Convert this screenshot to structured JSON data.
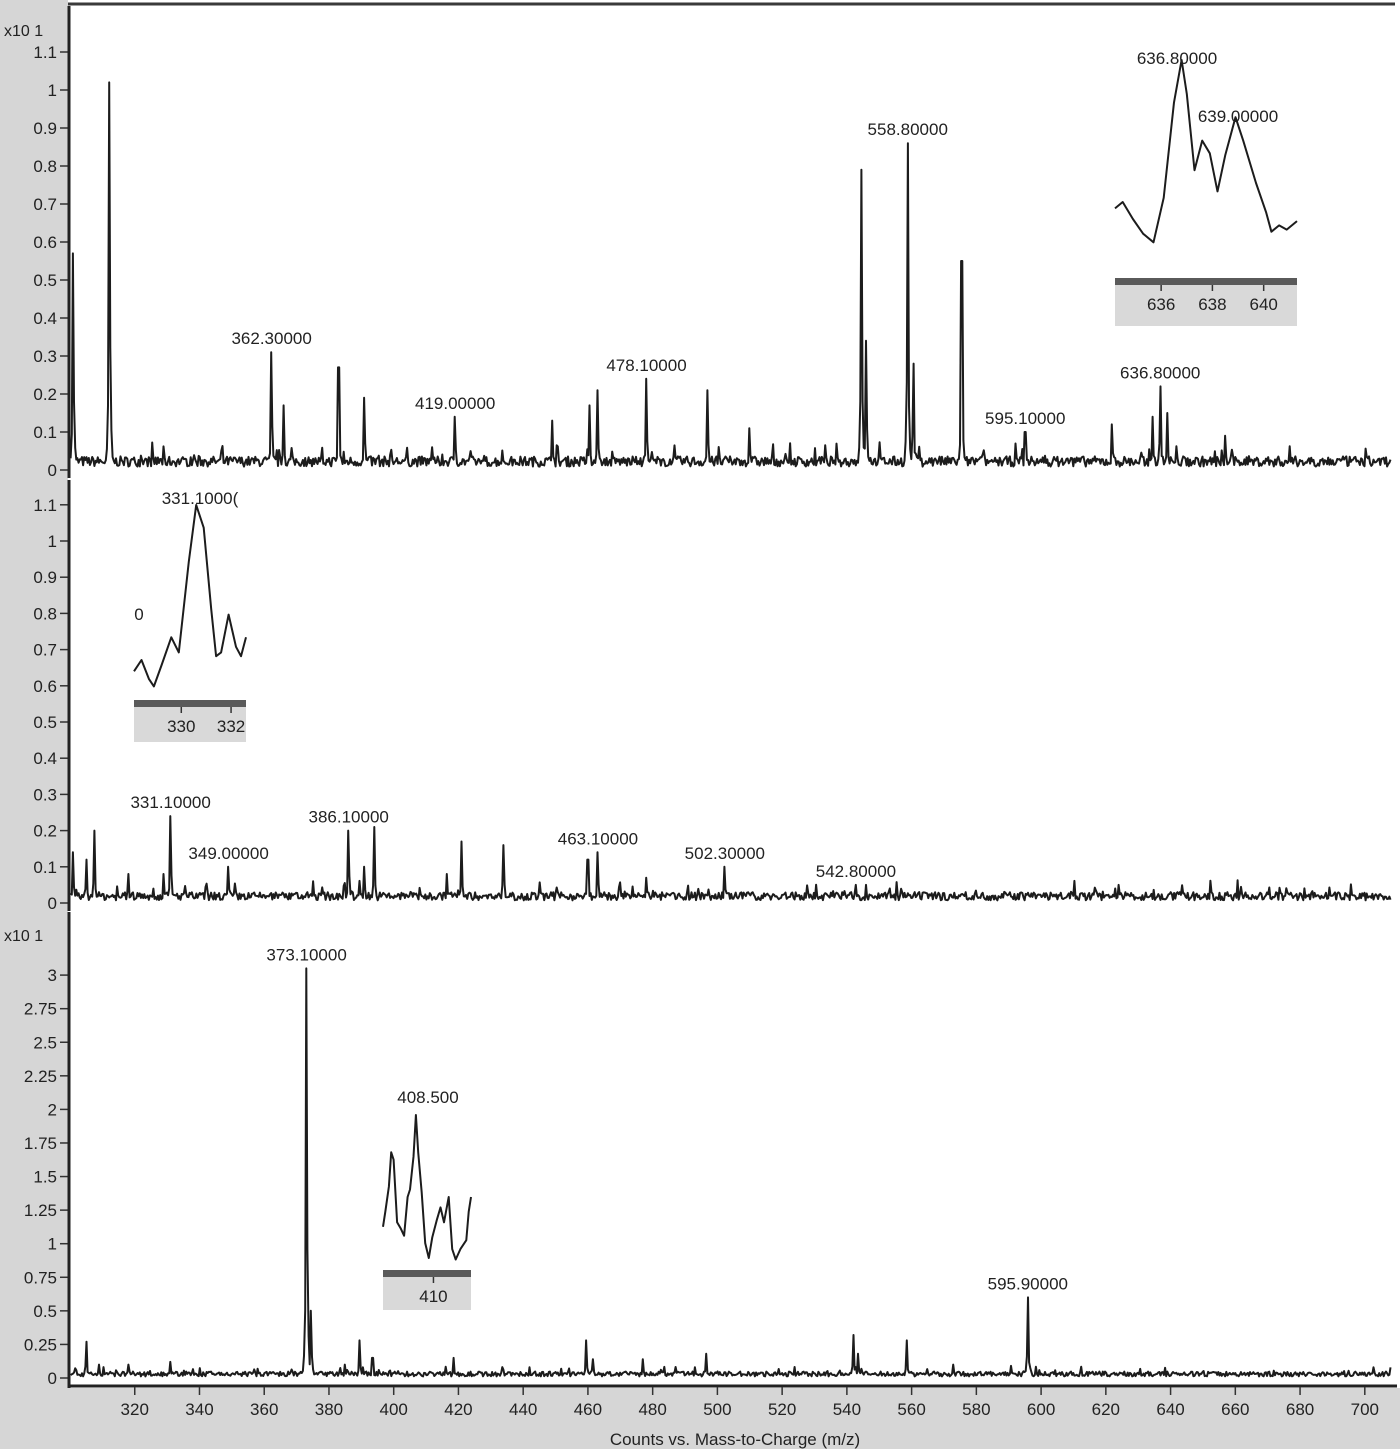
{
  "colors": {
    "axis_strip": "#d6d6d6",
    "trace": "#1c1c1c",
    "frame": "#3a3a3a",
    "inset_bar": "#5a5a5a",
    "inset_label_bg": "#d9d9d9",
    "plot_bg": "#ffffff"
  },
  "chart_data": [
    {
      "type": "line",
      "panel": "top",
      "title": "",
      "exponent_label": "x10 1",
      "xlabel": "",
      "ylabel": "",
      "xlim": [
        300,
        708
      ],
      "ylim": [
        0,
        1.12
      ],
      "y_ticks": [
        "0",
        "0.1",
        "0.2",
        "0.3",
        "0.4",
        "0.5",
        "0.6",
        "0.7",
        "0.8",
        "0.9",
        "1",
        "1.1"
      ],
      "y_tick_values": [
        0,
        0.1,
        0.2,
        0.3,
        0.4,
        0.5,
        0.6,
        0.7,
        0.8,
        0.9,
        1.0,
        1.1
      ],
      "peaks": [
        {
          "mz": 301.0,
          "intensity": 0.57
        },
        {
          "mz": 312.2,
          "intensity": 1.02
        },
        {
          "mz": 362.3,
          "intensity": 0.31,
          "label": "362.30000"
        },
        {
          "mz": 366.0,
          "intensity": 0.17
        },
        {
          "mz": 383.0,
          "intensity": 0.27
        },
        {
          "mz": 391.0,
          "intensity": 0.19
        },
        {
          "mz": 419.0,
          "intensity": 0.14,
          "label": "419.00000"
        },
        {
          "mz": 449.0,
          "intensity": 0.13
        },
        {
          "mz": 460.5,
          "intensity": 0.17
        },
        {
          "mz": 463.0,
          "intensity": 0.21
        },
        {
          "mz": 478.1,
          "intensity": 0.24,
          "label": "478.10000"
        },
        {
          "mz": 497.0,
          "intensity": 0.21
        },
        {
          "mz": 510.0,
          "intensity": 0.11
        },
        {
          "mz": 544.5,
          "intensity": 0.79
        },
        {
          "mz": 546.0,
          "intensity": 0.34
        },
        {
          "mz": 558.8,
          "intensity": 0.86,
          "label": "558.80000"
        },
        {
          "mz": 560.5,
          "intensity": 0.28
        },
        {
          "mz": 575.5,
          "intensity": 0.55
        },
        {
          "mz": 595.1,
          "intensity": 0.1,
          "label": "595.10000"
        },
        {
          "mz": 622.0,
          "intensity": 0.12
        },
        {
          "mz": 634.5,
          "intensity": 0.14
        },
        {
          "mz": 636.8,
          "intensity": 0.22,
          "label": "636.80000"
        },
        {
          "mz": 639.0,
          "intensity": 0.15
        },
        {
          "mz": 657.0,
          "intensity": 0.09
        }
      ],
      "noise_level": 0.03,
      "inset": {
        "x_ticks": [
          "636",
          "638",
          "640"
        ],
        "x_tick_values": [
          636,
          638,
          640
        ],
        "xlim": [
          634.2,
          641.3
        ],
        "labels": [
          "636.80000",
          "639.00000"
        ],
        "profile": [
          [
            634.2,
            0.3
          ],
          [
            634.5,
            0.33
          ],
          [
            634.9,
            0.25
          ],
          [
            635.3,
            0.18
          ],
          [
            635.7,
            0.14
          ],
          [
            636.1,
            0.35
          ],
          [
            636.5,
            0.8
          ],
          [
            636.8,
            1.0
          ],
          [
            637.0,
            0.84
          ],
          [
            637.3,
            0.48
          ],
          [
            637.6,
            0.62
          ],
          [
            637.9,
            0.56
          ],
          [
            638.2,
            0.38
          ],
          [
            638.5,
            0.55
          ],
          [
            638.9,
            0.73
          ],
          [
            639.2,
            0.62
          ],
          [
            639.7,
            0.42
          ],
          [
            640.1,
            0.28
          ],
          [
            640.3,
            0.19
          ],
          [
            640.6,
            0.22
          ],
          [
            640.9,
            0.2
          ],
          [
            641.3,
            0.24
          ]
        ]
      }
    },
    {
      "type": "line",
      "panel": "middle",
      "title": "",
      "exponent_label": "",
      "xlabel": "",
      "ylabel": "",
      "xlim": [
        300,
        708
      ],
      "ylim": [
        0,
        1.12
      ],
      "y_ticks": [
        "0",
        "0.1",
        "0.2",
        "0.3",
        "0.4",
        "0.5",
        "0.6",
        "0.7",
        "0.8",
        "0.9",
        "1",
        "1.1"
      ],
      "y_tick_values": [
        0,
        0.1,
        0.2,
        0.3,
        0.4,
        0.5,
        0.6,
        0.7,
        0.8,
        0.9,
        1.0,
        1.1
      ],
      "peaks": [
        {
          "mz": 301.0,
          "intensity": 0.14
        },
        {
          "mz": 305.0,
          "intensity": 0.12
        },
        {
          "mz": 307.5,
          "intensity": 0.2
        },
        {
          "mz": 318.0,
          "intensity": 0.08
        },
        {
          "mz": 329.0,
          "intensity": 0.08
        },
        {
          "mz": 331.1,
          "intensity": 0.24,
          "label": "331.10000"
        },
        {
          "mz": 349.0,
          "intensity": 0.1,
          "label": "349.00000"
        },
        {
          "mz": 375.0,
          "intensity": 0.06
        },
        {
          "mz": 386.1,
          "intensity": 0.2,
          "label": "386.10000"
        },
        {
          "mz": 391.0,
          "intensity": 0.1
        },
        {
          "mz": 394.0,
          "intensity": 0.21
        },
        {
          "mz": 416.5,
          "intensity": 0.08
        },
        {
          "mz": 421.0,
          "intensity": 0.17
        },
        {
          "mz": 434.0,
          "intensity": 0.16
        },
        {
          "mz": 460.0,
          "intensity": 0.12
        },
        {
          "mz": 463.1,
          "intensity": 0.14,
          "label": "463.10000"
        },
        {
          "mz": 478.0,
          "intensity": 0.07
        },
        {
          "mz": 502.3,
          "intensity": 0.1,
          "label": "502.30000"
        },
        {
          "mz": 542.8,
          "intensity": 0.05,
          "label": "542.80000"
        },
        {
          "mz": 546.0,
          "intensity": 0.05
        },
        {
          "mz": 623.0,
          "intensity": 0.04
        }
      ],
      "noise_level": 0.025,
      "inset": {
        "x_ticks": [
          "330",
          "332"
        ],
        "x_tick_values": [
          330,
          332
        ],
        "xlim": [
          328.1,
          332.6
        ],
        "labels": [
          "331.1000(",
          "0"
        ],
        "profile": [
          [
            328.1,
            0.12
          ],
          [
            328.4,
            0.18
          ],
          [
            328.7,
            0.08
          ],
          [
            328.9,
            0.04
          ],
          [
            329.2,
            0.15
          ],
          [
            329.6,
            0.3
          ],
          [
            329.9,
            0.22
          ],
          [
            330.3,
            0.7
          ],
          [
            330.6,
            1.0
          ],
          [
            330.9,
            0.88
          ],
          [
            331.2,
            0.45
          ],
          [
            331.4,
            0.2
          ],
          [
            331.6,
            0.22
          ],
          [
            331.9,
            0.42
          ],
          [
            332.2,
            0.25
          ],
          [
            332.4,
            0.2
          ],
          [
            332.6,
            0.3
          ]
        ]
      }
    },
    {
      "type": "line",
      "panel": "bottom",
      "title": "",
      "exponent_label": "x10 1",
      "xlabel": "Counts vs. Mass-to-Charge (m/z)",
      "ylabel": "",
      "xlim": [
        300,
        708
      ],
      "ylim": [
        0,
        3.02
      ],
      "x_ticks": [
        "320",
        "340",
        "360",
        "380",
        "400",
        "420",
        "440",
        "460",
        "480",
        "500",
        "520",
        "540",
        "560",
        "580",
        "600",
        "620",
        "640",
        "660",
        "680",
        "700"
      ],
      "x_tick_values": [
        320,
        340,
        360,
        380,
        400,
        420,
        440,
        460,
        480,
        500,
        520,
        540,
        560,
        580,
        600,
        620,
        640,
        660,
        680,
        700
      ],
      "y_ticks": [
        "0",
        "0.25",
        "0.5",
        "0.75",
        "1",
        "1.25",
        "1.5",
        "1.75",
        "2",
        "2.25",
        "2.5",
        "2.75",
        "3"
      ],
      "y_tick_values": [
        0,
        0.25,
        0.5,
        0.75,
        1.0,
        1.25,
        1.5,
        1.75,
        2.0,
        2.25,
        2.5,
        2.75,
        3.0
      ],
      "peaks": [
        {
          "mz": 305.0,
          "intensity": 0.27
        },
        {
          "mz": 309.0,
          "intensity": 0.1
        },
        {
          "mz": 318.0,
          "intensity": 0.1
        },
        {
          "mz": 331.0,
          "intensity": 0.12
        },
        {
          "mz": 373.1,
          "intensity": 3.05,
          "label": "373.10000"
        },
        {
          "mz": 374.5,
          "intensity": 0.5
        },
        {
          "mz": 385.0,
          "intensity": 0.1
        },
        {
          "mz": 389.5,
          "intensity": 0.28
        },
        {
          "mz": 393.5,
          "intensity": 0.15
        },
        {
          "mz": 418.5,
          "intensity": 0.15
        },
        {
          "mz": 442.0,
          "intensity": 0.08
        },
        {
          "mz": 459.5,
          "intensity": 0.28
        },
        {
          "mz": 461.5,
          "intensity": 0.14
        },
        {
          "mz": 477.0,
          "intensity": 0.14
        },
        {
          "mz": 496.5,
          "intensity": 0.18
        },
        {
          "mz": 542.0,
          "intensity": 0.32
        },
        {
          "mz": 543.5,
          "intensity": 0.18
        },
        {
          "mz": 558.5,
          "intensity": 0.28
        },
        {
          "mz": 573.0,
          "intensity": 0.1
        },
        {
          "mz": 595.9,
          "intensity": 0.6,
          "label": "595.90000"
        }
      ],
      "noise_level": 0.04,
      "inset": {
        "x_ticks": [
          "410"
        ],
        "x_tick_values": [
          410
        ],
        "xlim": [
          405.7,
          413.2
        ],
        "labels": [
          "408.500"
        ],
        "profile": [
          [
            405.7,
            0.25
          ],
          [
            405.9,
            0.35
          ],
          [
            406.2,
            0.52
          ],
          [
            406.4,
            0.75
          ],
          [
            406.6,
            0.7
          ],
          [
            406.9,
            0.28
          ],
          [
            407.2,
            0.24
          ],
          [
            407.5,
            0.19
          ],
          [
            407.8,
            0.45
          ],
          [
            408.0,
            0.5
          ],
          [
            408.3,
            0.72
          ],
          [
            408.5,
            1.0
          ],
          [
            408.7,
            0.75
          ],
          [
            409.0,
            0.48
          ],
          [
            409.3,
            0.14
          ],
          [
            409.6,
            0.04
          ],
          [
            409.9,
            0.18
          ],
          [
            410.3,
            0.3
          ],
          [
            410.6,
            0.38
          ],
          [
            410.9,
            0.28
          ],
          [
            411.3,
            0.45
          ],
          [
            411.6,
            0.1
          ],
          [
            411.9,
            0.03
          ],
          [
            412.3,
            0.1
          ],
          [
            412.8,
            0.16
          ],
          [
            413.0,
            0.35
          ],
          [
            413.2,
            0.45
          ]
        ]
      }
    }
  ],
  "axis": {
    "x_title": "Counts vs. Mass-to-Charge (m/z)"
  }
}
